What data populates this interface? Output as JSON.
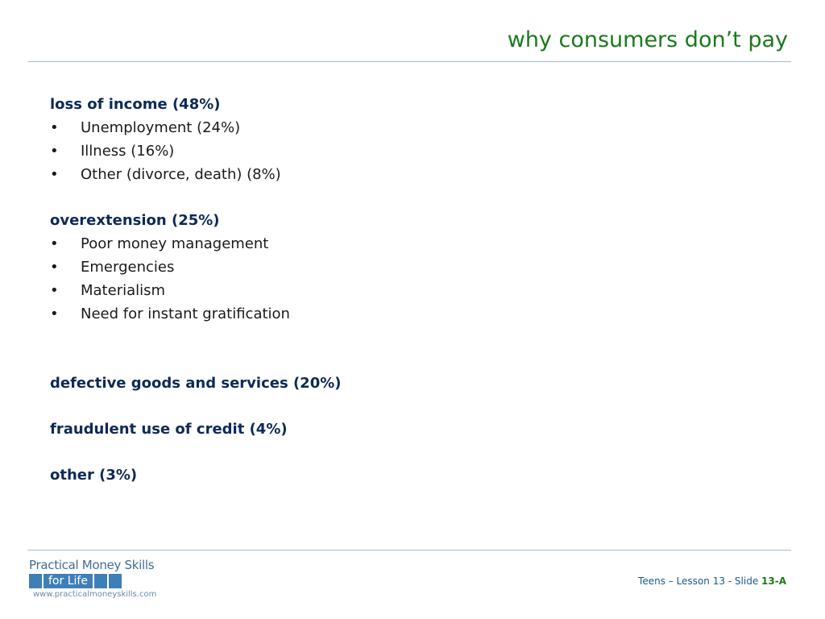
{
  "slide": {
    "title": "why consumers don’t pay"
  },
  "sections": [
    {
      "heading": "loss of income (48%)",
      "bullets": [
        "Unemployment (24%)",
        "Illness (16%)",
        "Other (divorce, death) (8%)"
      ]
    },
    {
      "heading": "overextension (25%)",
      "bullets": [
        "Poor money management",
        "Emergencies",
        "Materialism",
        "Need for instant gratification"
      ]
    },
    {
      "heading": "defective goods and services (20%)",
      "bullets": []
    },
    {
      "heading": "fraudulent use of credit (4%)",
      "bullets": []
    },
    {
      "heading": "other (3%)",
      "bullets": []
    }
  ],
  "bullet_symbol": "•",
  "logo": {
    "line1": "Practical Money Skills",
    "line2": "for Life",
    "url": "www.practicalmoneyskills.com"
  },
  "footer": {
    "prefix": "Teens – Lesson 13 - Slide ",
    "slide_number": "13-A"
  },
  "colors": {
    "title": "#1a7a1a",
    "heading": "#0d2a56",
    "rule": "#9fbfd4",
    "logo_blue": "#3f7fb8"
  }
}
